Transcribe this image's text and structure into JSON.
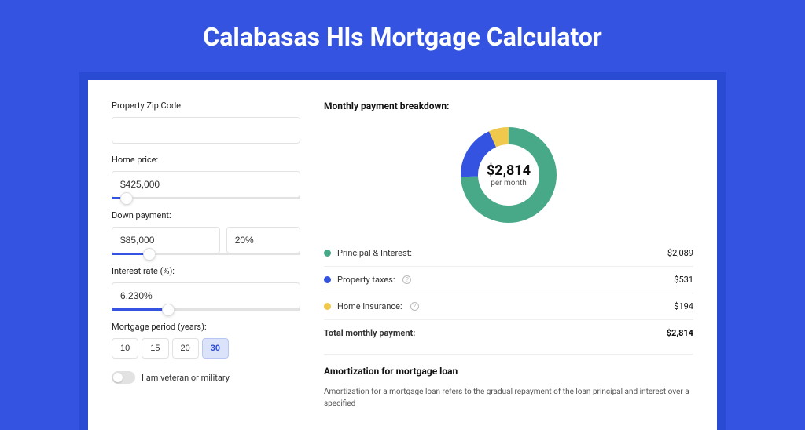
{
  "title": "Calabasas Hls Mortgage Calculator",
  "form": {
    "zip": {
      "label": "Property Zip Code:",
      "value": ""
    },
    "home_price": {
      "label": "Home price:",
      "value": "$425,000",
      "slider_pct": 8
    },
    "down_payment": {
      "label": "Down payment:",
      "value": "$85,000",
      "pct_value": "20%",
      "slider_pct": 20
    },
    "interest": {
      "label": "Interest rate (%):",
      "value": "6.230%",
      "slider_pct": 30
    },
    "period": {
      "label": "Mortgage period (years):",
      "options": [
        "10",
        "15",
        "20",
        "30"
      ],
      "selected": "30"
    },
    "veteran_label": "I am veteran or military",
    "veteran_on": false
  },
  "breakdown": {
    "title": "Monthly payment breakdown:",
    "center_amount": "$2,814",
    "center_sub": "per month",
    "items": [
      {
        "label": "Principal & Interest:",
        "value": "$2,089",
        "color": "#48a989",
        "info": false,
        "num": 2089
      },
      {
        "label": "Property taxes:",
        "value": "$531",
        "color": "#3353e0",
        "info": true,
        "num": 531
      },
      {
        "label": "Home insurance:",
        "value": "$194",
        "color": "#f0c84c",
        "info": true,
        "num": 194
      }
    ],
    "total_label": "Total monthly payment:",
    "total_value": "$2,814",
    "total_num": 2814,
    "donut": {
      "radius": 50,
      "stroke_width": 22,
      "colors": [
        "#48a989",
        "#3353e0",
        "#f0c84c"
      ]
    }
  },
  "amortization": {
    "title": "Amortization for mortgage loan",
    "text": "Amortization for a mortgage loan refers to the gradual repayment of the loan principal and interest over a specified"
  },
  "background_color": "#3353e0",
  "card_background": "#ffffff"
}
